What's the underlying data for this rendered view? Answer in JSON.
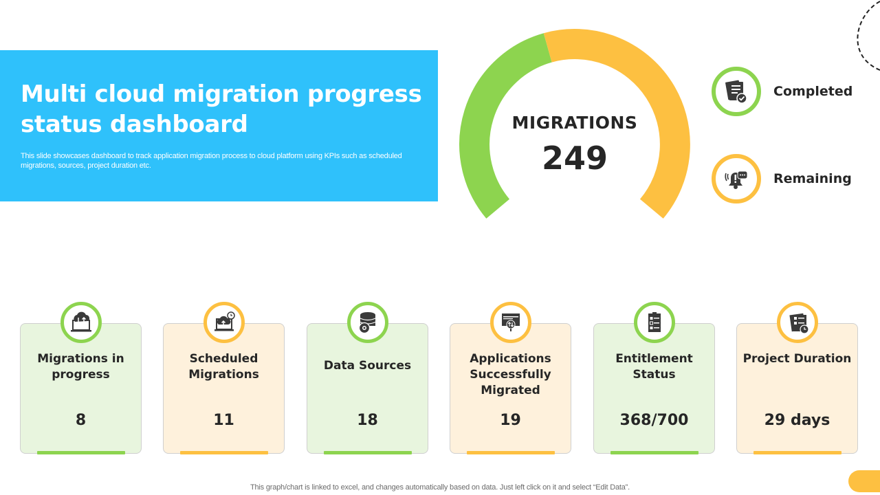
{
  "header": {
    "title": "Multi cloud migration progress status dashboard",
    "description": "This slide showcases dashboard to track application migration process to cloud platform using KPIs such as scheduled migrations, sources, project duration etc."
  },
  "gauge": {
    "label": "MIGRATIONS",
    "value": "249",
    "colors": {
      "completed": "#8dd44f",
      "remaining": "#fdc041"
    }
  },
  "legend": {
    "items": [
      {
        "label": "Completed",
        "icon": "document-check-icon",
        "color": "#8dd44f"
      },
      {
        "label": "Remaining",
        "icon": "bell-alert-icon",
        "color": "#fdc041"
      }
    ]
  },
  "cards": [
    {
      "title": "Migrations in progress",
      "value": "8",
      "icon": "cloud-laptop-transfer-icon",
      "color": "#8dd44f"
    },
    {
      "title": "Scheduled Migrations",
      "value": "11",
      "icon": "cloud-upload-laptop-icon",
      "color": "#fdc041"
    },
    {
      "title": "Data Sources",
      "value": "18",
      "icon": "database-gear-icon",
      "color": "#8dd44f"
    },
    {
      "title": "Applications Successfully Migrated",
      "value": "19",
      "icon": "app-window-transfer-icon",
      "color": "#fdc041"
    },
    {
      "title": "Entitlement Status",
      "value": "368/700",
      "icon": "clipboard-checklist-icon",
      "color": "#8dd44f"
    },
    {
      "title": "Project Duration",
      "value": "29 days",
      "icon": "document-clock-icon",
      "color": "#fdc041"
    }
  ],
  "footer": {
    "note": "This graph/chart is linked to excel,  and changes automatically based on data. Just left click on it and select “Edit Data”."
  },
  "chart_data": {
    "type": "pie",
    "subtype": "gauge-doughnut",
    "title": "MIGRATIONS",
    "total": 249,
    "categories": [
      "Completed",
      "Remaining"
    ],
    "values": [
      44,
      56
    ],
    "unit": "percent of gauge arc (estimated)",
    "colors": [
      "#8dd44f",
      "#fdc041"
    ],
    "legend_position": "right",
    "kpis": [
      {
        "label": "Migrations in progress",
        "value": 8
      },
      {
        "label": "Scheduled Migrations",
        "value": 11
      },
      {
        "label": "Data Sources",
        "value": 18
      },
      {
        "label": "Applications Successfully Migrated",
        "value": 19
      },
      {
        "label": "Entitlement Status",
        "value": "368/700"
      },
      {
        "label": "Project Duration",
        "value": "29 days"
      }
    ]
  }
}
